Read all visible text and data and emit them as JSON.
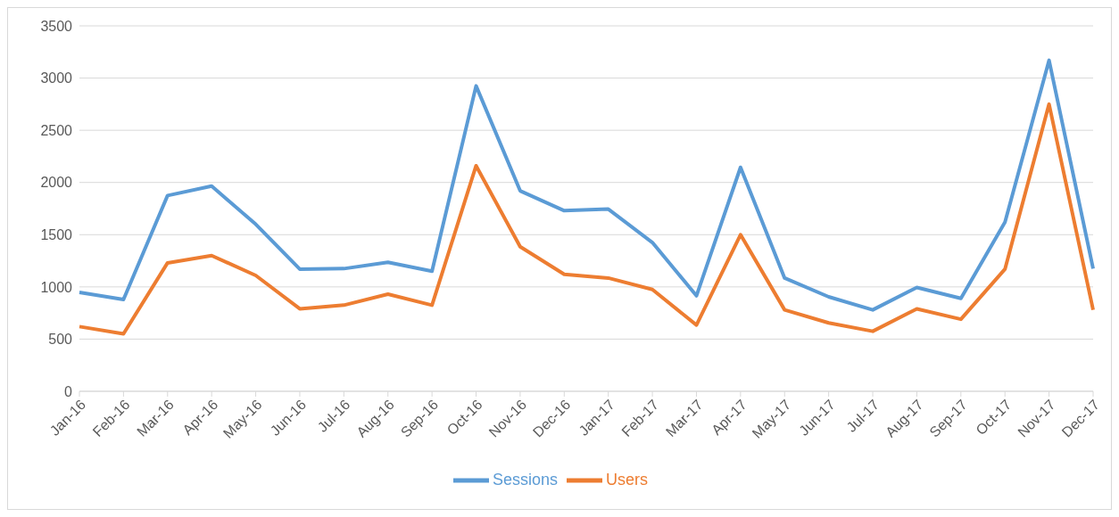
{
  "chart_data": {
    "type": "line",
    "categories": [
      "Jan-16",
      "Feb-16",
      "Mar-16",
      "Apr-16",
      "May-16",
      "Jun-16",
      "Jul-16",
      "Aug-16",
      "Sep-16",
      "Oct-16",
      "Nov-16",
      "Dec-16",
      "Jan-17",
      "Feb-17",
      "Mar-17",
      "Apr-17",
      "May-17",
      "Jun-17",
      "Jul-17",
      "Aug-17",
      "Sep-17",
      "Oct-17",
      "Nov-17",
      "Dec-17"
    ],
    "series": [
      {
        "name": "Sessions",
        "color": "#5b9bd5",
        "values": [
          947,
          880,
          1875,
          1965,
          1600,
          1170,
          1175,
          1235,
          1150,
          2925,
          1920,
          1730,
          1745,
          1425,
          915,
          2145,
          1085,
          905,
          780,
          995,
          890,
          1620,
          3170,
          1175
        ]
      },
      {
        "name": "Users",
        "color": "#ed7d31",
        "values": [
          620,
          550,
          1230,
          1300,
          1110,
          790,
          825,
          930,
          825,
          2160,
          1385,
          1120,
          1085,
          975,
          635,
          1500,
          780,
          655,
          575,
          790,
          690,
          1170,
          2750,
          780
        ]
      }
    ],
    "ylim": [
      0,
      3500
    ],
    "yticks": [
      0,
      500,
      1000,
      1500,
      2000,
      2500,
      3000,
      3500
    ],
    "grid": "y",
    "legend": "bottom",
    "marker": "none",
    "line_style": "solid"
  }
}
